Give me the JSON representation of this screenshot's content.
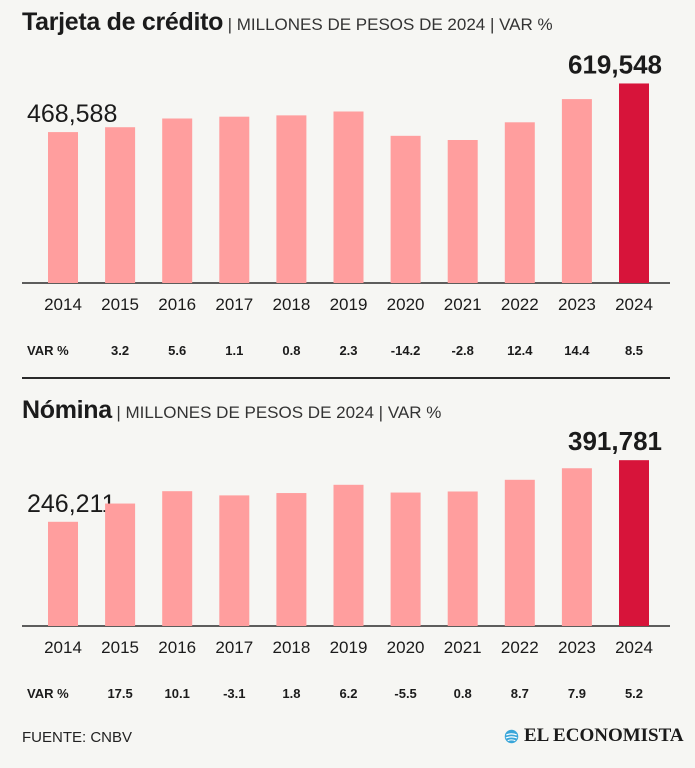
{
  "chart_data": [
    {
      "type": "bar",
      "title": "Tarjeta de crédito",
      "subtitle": "| MILLONES DE PESOS DE 2024 | VAR %",
      "categories": [
        "2014",
        "2015",
        "2016",
        "2017",
        "2018",
        "2019",
        "2020",
        "2021",
        "2022",
        "2023",
        "2024"
      ],
      "values": [
        468588,
        483700,
        510800,
        516400,
        520500,
        532500,
        457000,
        444000,
        499000,
        571000,
        619548
      ],
      "first_label": "468,588",
      "last_label": "619,548",
      "var_label": "VAR %",
      "var_values": [
        "",
        "3.2",
        "5.6",
        "1.1",
        "0.8",
        "2.3",
        "-14.2",
        "-2.8",
        "12.4",
        "14.4",
        "8.5"
      ],
      "bar_color": "#ff9e9e",
      "highlight_color": "#d7143a",
      "ylim": [
        0,
        680000
      ]
    },
    {
      "type": "bar",
      "title": "Nómina",
      "subtitle": "| MILLONES DE PESOS DE 2024 | VAR %",
      "categories": [
        "2014",
        "2015",
        "2016",
        "2017",
        "2018",
        "2019",
        "2020",
        "2021",
        "2022",
        "2023",
        "2024"
      ],
      "values": [
        246211,
        289300,
        318500,
        308600,
        314100,
        333600,
        315300,
        317800,
        345400,
        372700,
        391781
      ],
      "first_label": "246,211",
      "last_label": "391,781",
      "var_label": "VAR %",
      "var_values": [
        "",
        "17.5",
        "10.1",
        "-3.1",
        "1.8",
        "6.2",
        "-5.5",
        "0.8",
        "8.7",
        "7.9",
        "5.2"
      ],
      "bar_color": "#ff9e9e",
      "highlight_color": "#d7143a",
      "ylim": [
        0,
        430000
      ]
    }
  ],
  "source": "FUENTE: CNBV",
  "brand": "EL ECONOMISTA",
  "brand_icon": "globe-icon"
}
